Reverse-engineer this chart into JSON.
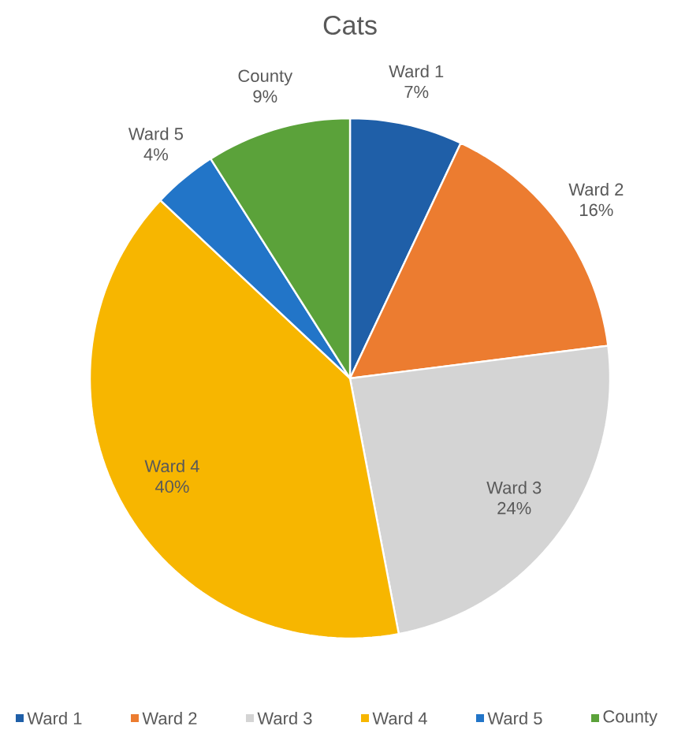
{
  "chart_data": {
    "type": "pie",
    "title": "Cats",
    "categories": [
      "Ward 1",
      "Ward 2",
      "Ward 3",
      "Ward 4",
      "Ward 5",
      "County"
    ],
    "values": [
      7,
      16,
      24,
      40,
      4,
      9
    ],
    "value_labels": [
      "7%",
      "16%",
      "24%",
      "40%",
      "4%",
      "9%"
    ],
    "colors": [
      "#1f5fa8",
      "#ec7c30",
      "#d4d4d4",
      "#f7b600",
      "#2275c8",
      "#5ba23a"
    ],
    "legend": "bottom"
  }
}
